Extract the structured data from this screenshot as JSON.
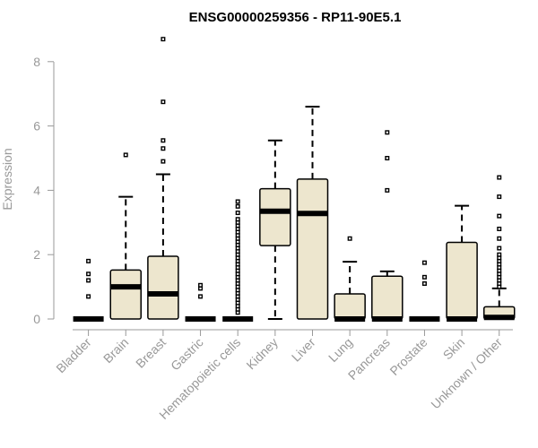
{
  "chart_data": {
    "type": "box",
    "title": "ENSG00000259356 - RP11-90E5.1",
    "ylabel": "Expression",
    "ylim": [
      0,
      8
    ],
    "y_ticks": [
      "0",
      "2",
      "4",
      "6",
      "8"
    ],
    "grid": false,
    "box_fill": "#ede6ce",
    "categories": [
      "Bladder",
      "Brain",
      "Breast",
      "Gastric",
      "Hematopoietic cells",
      "Kidney",
      "Liver",
      "Lung",
      "Pancreas",
      "Prostate",
      "Skin",
      "Unknown / Other"
    ],
    "boxes": [
      {
        "q1": 0,
        "median": 0,
        "q3": 0,
        "whisker_low": 0,
        "whisker_high": 0,
        "outliers": [
          0.7,
          1.2,
          1.4,
          1.8
        ]
      },
      {
        "q1": 0,
        "median": 1.0,
        "q3": 1.52,
        "whisker_low": 0,
        "whisker_high": 3.8,
        "outliers": [
          5.1
        ]
      },
      {
        "q1": 0,
        "median": 0.78,
        "q3": 1.95,
        "whisker_low": 0,
        "whisker_high": 4.5,
        "outliers": [
          4.9,
          5.3,
          5.55,
          6.75,
          8.7
        ]
      },
      {
        "q1": 0,
        "median": 0,
        "q3": 0,
        "whisker_low": 0,
        "whisker_high": 0,
        "outliers": [
          0.7,
          0.95,
          1.05
        ]
      },
      {
        "q1": 0,
        "median": 0,
        "q3": 0,
        "whisker_low": 0,
        "whisker_high": 0,
        "outliers": [
          0.2,
          0.3,
          0.4,
          0.5,
          0.6,
          0.7,
          0.8,
          0.9,
          1.0,
          1.1,
          1.2,
          1.3,
          1.4,
          1.5,
          1.6,
          1.7,
          1.8,
          1.9,
          2.0,
          2.1,
          2.2,
          2.3,
          2.4,
          2.5,
          2.6,
          2.7,
          2.8,
          2.9,
          3.0,
          3.1,
          3.3,
          3.5,
          3.65
        ]
      },
      {
        "q1": 2.28,
        "median": 3.35,
        "q3": 4.05,
        "whisker_low": 0,
        "whisker_high": 5.55,
        "outliers": []
      },
      {
        "q1": 0,
        "median": 3.28,
        "q3": 4.35,
        "whisker_low": 0,
        "whisker_high": 6.6,
        "outliers": []
      },
      {
        "q1": 0,
        "median": 0,
        "q3": 0.78,
        "whisker_low": 0,
        "whisker_high": 1.78,
        "outliers": [
          2.5
        ]
      },
      {
        "q1": 0,
        "median": 0,
        "q3": 1.33,
        "whisker_low": 0,
        "whisker_high": 1.48,
        "outliers": [
          4.0,
          5.0,
          5.8
        ]
      },
      {
        "q1": 0,
        "median": 0,
        "q3": 0,
        "whisker_low": 0,
        "whisker_high": 0,
        "outliers": [
          1.1,
          1.3,
          1.75
        ]
      },
      {
        "q1": 0,
        "median": 0,
        "q3": 2.38,
        "whisker_low": 0,
        "whisker_high": 3.52,
        "outliers": []
      },
      {
        "q1": 0,
        "median": 0.05,
        "q3": 0.38,
        "whisker_low": 0,
        "whisker_high": 0.95,
        "outliers": [
          1.0,
          1.1,
          1.2,
          1.3,
          1.4,
          1.5,
          1.6,
          1.7,
          1.8,
          1.9,
          2.0,
          2.2,
          2.5,
          2.8,
          3.2,
          3.8,
          4.4
        ]
      }
    ]
  }
}
